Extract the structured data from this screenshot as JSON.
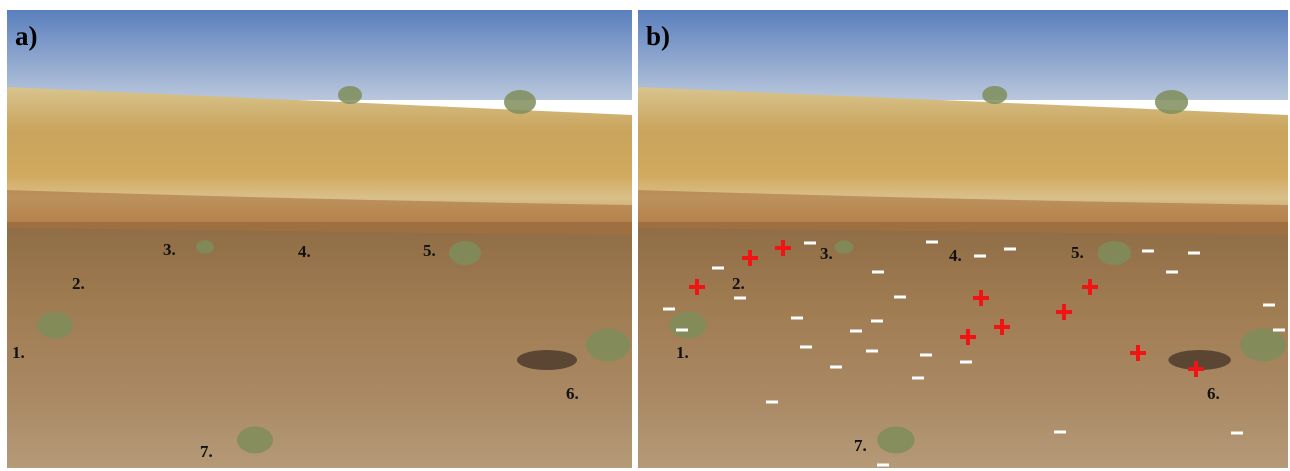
{
  "panels": [
    {
      "label": "a)",
      "markers": [
        "1.",
        "2.",
        "3.",
        "4.",
        "5.",
        "6.",
        "7."
      ]
    },
    {
      "label": "b)",
      "markers": [
        "1.",
        "2.",
        "3.",
        "4.",
        "5.",
        "6.",
        "7."
      ]
    }
  ]
}
